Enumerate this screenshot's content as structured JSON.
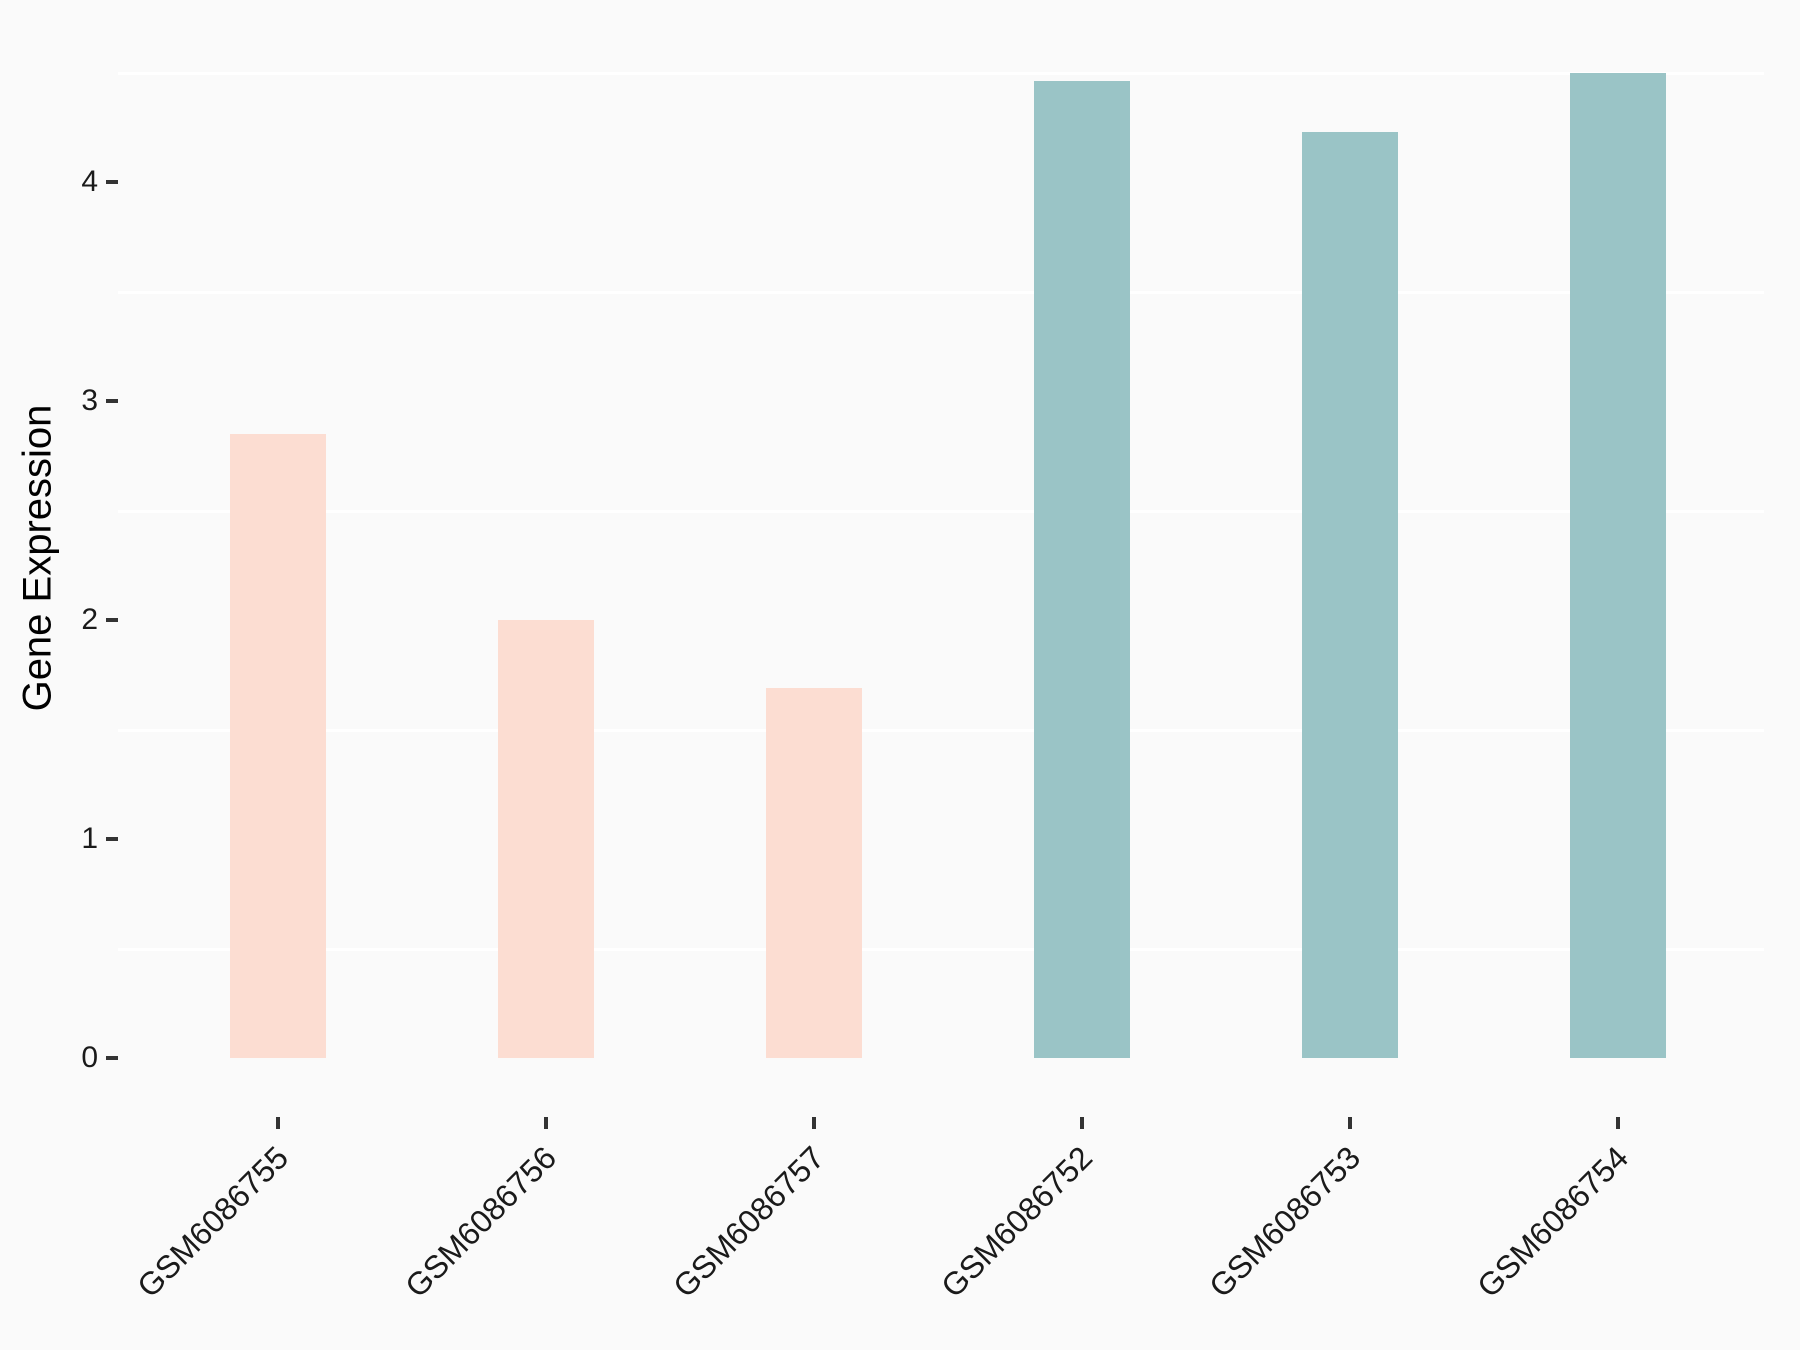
{
  "chart_data": {
    "type": "bar",
    "title": "",
    "xlabel": "",
    "ylabel": "Gene Expression",
    "categories": [
      "GSM6086755",
      "GSM6086756",
      "GSM6086757",
      "GSM6086752",
      "GSM6086753",
      "GSM6086754"
    ],
    "values": [
      2.85,
      2.0,
      1.69,
      4.46,
      4.23,
      4.5
    ],
    "bar_colors": [
      "#FCDDD2",
      "#FCDDD2",
      "#FCDDD2",
      "#9AC4C6",
      "#9AC4C6",
      "#9AC4C6"
    ],
    "yticks": [
      0,
      1,
      2,
      3,
      4
    ],
    "ylim": [
      0,
      4.75
    ],
    "minor_gridlines": [
      0.5,
      1.5,
      2.5,
      3.5,
      4.5
    ],
    "grid": "minor gridlines only, white on light gray panel",
    "legend": "none",
    "colors": {
      "background": "#FAFAFA",
      "gridline": "#FFFFFF",
      "tick_mark": "#333333",
      "tick_label": "#1A1A1A",
      "axis_title": "#000000",
      "group_low": "#FCDDD2",
      "group_high": "#9AC4C6"
    }
  }
}
